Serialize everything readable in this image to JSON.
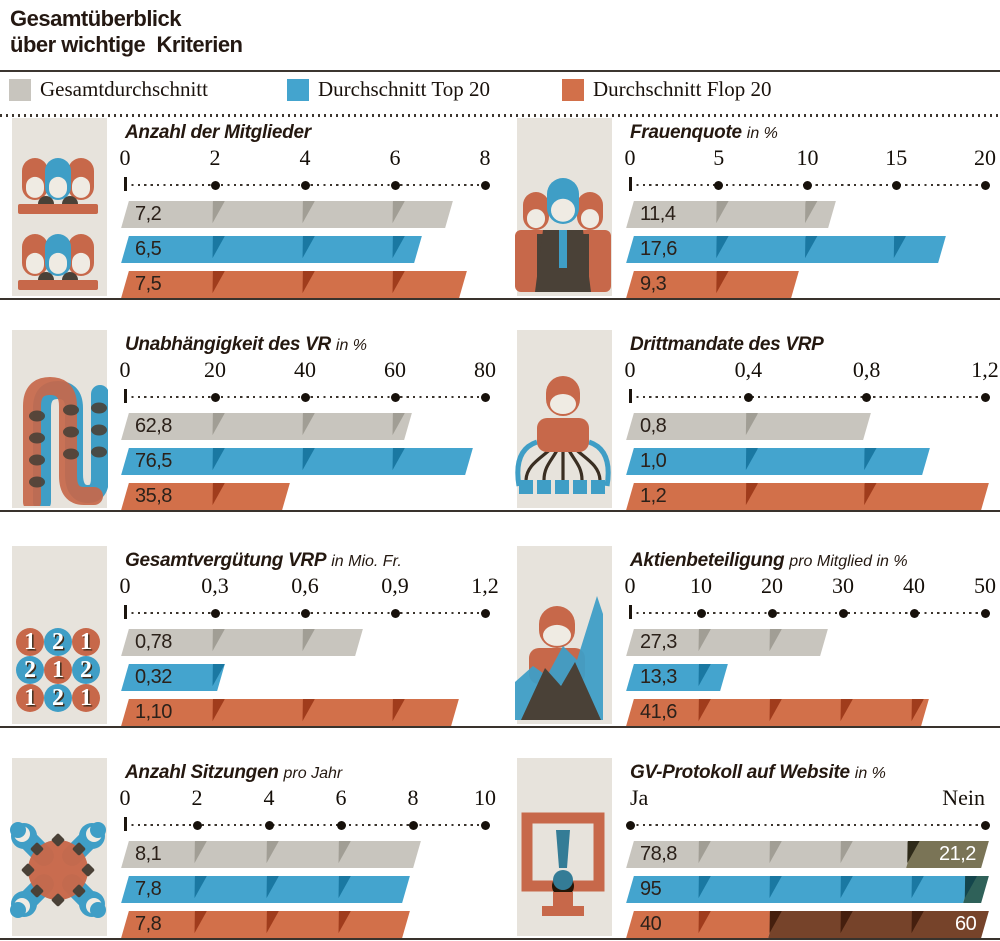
{
  "title": {
    "line1": "Gesamtüberblick",
    "line2": "über wichtige  Kriterien"
  },
  "legend": {
    "items": [
      {
        "label": "Gesamtdurchschnitt",
        "color": "#c8c5be"
      },
      {
        "label": "Durchschnitt Top 20",
        "color": "#44a4ce"
      },
      {
        "label": "Durchschnitt Flop 20",
        "color": "#d2704a"
      }
    ]
  },
  "colors": {
    "gray": "#c8c5be",
    "gray_notch": "#a19e95",
    "blue": "#44a4ce",
    "blue_notch": "#1a78a2",
    "orange": "#d2704a",
    "orange_notch": "#a03c1c",
    "olive_dark": "#7a7456",
    "teal_dark": "#2f6159",
    "brown_dark": "#76432a",
    "strip_bg": "#e7e3dc",
    "baseline": "#39332d",
    "text": "#241812"
  },
  "chart_data": {
    "type": "bar",
    "orientation": "horizontal",
    "series_names": [
      "Gesamtdurchschnitt",
      "Durchschnitt Top 20",
      "Durchschnitt Flop 20"
    ],
    "panels": [
      {
        "slug": "anzahl-der-mitglieder",
        "icon": "board-members-icon",
        "title": "Anzahl der Mitglieder",
        "subtitle": "",
        "axis": {
          "min": 0,
          "max": 8,
          "ticks": [
            "0",
            "2",
            "4",
            "6",
            "8"
          ]
        },
        "values": [
          7.2,
          6.5,
          7.5
        ],
        "labels": [
          "7,2",
          "6,5",
          "7,5"
        ]
      },
      {
        "slug": "frauenquote",
        "icon": "women-quota-icon",
        "title": "Frauenquote",
        "subtitle": "in %",
        "axis": {
          "min": 0,
          "max": 20,
          "ticks": [
            "0",
            "5",
            "10",
            "15",
            "20"
          ]
        },
        "values": [
          11.4,
          17.6,
          9.3
        ],
        "labels": [
          "11,4",
          "17,6",
          "9,3"
        ]
      },
      {
        "slug": "unabhaengigkeit-des-vr",
        "icon": "independence-chain-icon",
        "title": "Unabhängigkeit des VR",
        "subtitle": "in %",
        "axis": {
          "min": 0,
          "max": 80,
          "ticks": [
            "0",
            "20",
            "40",
            "60",
            "80"
          ]
        },
        "values": [
          62.8,
          76.5,
          35.8
        ],
        "labels": [
          "62,8",
          "76,5",
          "35,8"
        ]
      },
      {
        "slug": "drittmandate-des-vrp",
        "icon": "third-mandates-icon",
        "title": "Drittmandate des VRP",
        "subtitle": "",
        "axis": {
          "min": 0,
          "max": 1.2,
          "ticks": [
            "0",
            "0,4",
            "0,8",
            "1,2"
          ]
        },
        "values": [
          0.8,
          1.0,
          1.2
        ],
        "labels": [
          "0,8",
          "1,0",
          "1,2"
        ]
      },
      {
        "slug": "gesamtverguetung-vrp",
        "icon": "compensation-coins-icon",
        "title": "Gesamtvergütung VRP",
        "subtitle": "in Mio. Fr.",
        "axis": {
          "min": 0,
          "max": 1.2,
          "ticks": [
            "0",
            "0,3",
            "0,6",
            "0,9",
            "1,2"
          ]
        },
        "values": [
          0.78,
          0.32,
          1.1
        ],
        "labels": [
          "0,78",
          "0,32",
          "1,10"
        ]
      },
      {
        "slug": "aktienbeteiligung",
        "icon": "share-ownership-icon",
        "title": "Aktienbeteiligung",
        "subtitle": "pro Mitglied in %",
        "axis": {
          "min": 0,
          "max": 50,
          "ticks": [
            "0",
            "10",
            "20",
            "30",
            "40",
            "50"
          ]
        },
        "values": [
          27.3,
          13.3,
          41.6
        ],
        "labels": [
          "27,3",
          "13,3",
          "41,6"
        ]
      },
      {
        "slug": "anzahl-sitzungen",
        "icon": "meetings-table-icon",
        "title": "Anzahl Sitzungen",
        "subtitle": "pro Jahr",
        "axis": {
          "min": 0,
          "max": 10,
          "ticks": [
            "0",
            "2",
            "4",
            "6",
            "8",
            "10"
          ]
        },
        "values": [
          8.1,
          7.8,
          7.8
        ],
        "labels": [
          "8,1",
          "7,8",
          "7,8"
        ]
      },
      {
        "slug": "gv-protokoll-auf-website",
        "icon": "website-monitor-icon",
        "title": "GV-Protokoll auf Website",
        "subtitle": "in %",
        "axis": {
          "min": 0,
          "max": 100,
          "left_label": "Ja",
          "right_label": "Nein",
          "gridline_ticks": [
            20,
            40,
            60,
            80
          ]
        },
        "split": {
          "values": [
            [
              78.8,
              21.2
            ],
            [
              95,
              5
            ],
            [
              40,
              60
            ]
          ],
          "labels_left": [
            "78,8",
            "95",
            "40"
          ],
          "labels_right": [
            "21,2",
            "",
            "60"
          ]
        }
      }
    ]
  },
  "icons": {
    "coins_digits": [
      [
        "1",
        "2",
        "1"
      ],
      [
        "2",
        "1",
        "2"
      ],
      [
        "1",
        "2",
        "1"
      ]
    ]
  }
}
